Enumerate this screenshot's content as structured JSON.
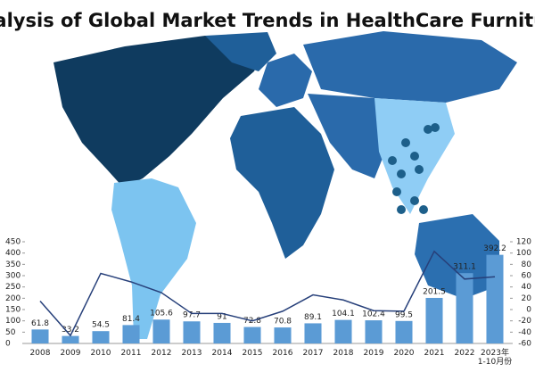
{
  "chart_data": {
    "type": "bar",
    "title": "Analysis of Global Market Trends in HealthCare Furniture",
    "categories": [
      "2008",
      "2009",
      "2010",
      "2011",
      "2012",
      "2013",
      "2014",
      "2015",
      "2016",
      "2017",
      "2018",
      "2019",
      "2020",
      "2021",
      "2022",
      "2023年\n1-10月份"
    ],
    "series": [
      {
        "type": "bar",
        "color": "#5b9bd5",
        "values": [
          61.8,
          33.2,
          54.5,
          81.4,
          105.6,
          97.7,
          91,
          72.8,
          70.8,
          89.1,
          104.1,
          102.4,
          99.5,
          201.5,
          311.1,
          392.2
        ]
      },
      {
        "type": "line",
        "axis": "y2",
        "color": "#27407a",
        "values": [
          15,
          -46,
          64,
          49,
          30,
          -7,
          -7,
          -20,
          -3,
          26,
          17,
          -2,
          -3,
          103,
          54,
          58
        ]
      }
    ],
    "ylim": [
      0,
      450
    ],
    "yticks": [
      0,
      50,
      100,
      150,
      200,
      250,
      300,
      350,
      400,
      450
    ],
    "y2lim": [
      -60,
      120
    ],
    "y2ticks": [
      -60,
      -40,
      -20,
      0,
      20,
      40,
      60,
      80,
      100,
      120
    ]
  }
}
